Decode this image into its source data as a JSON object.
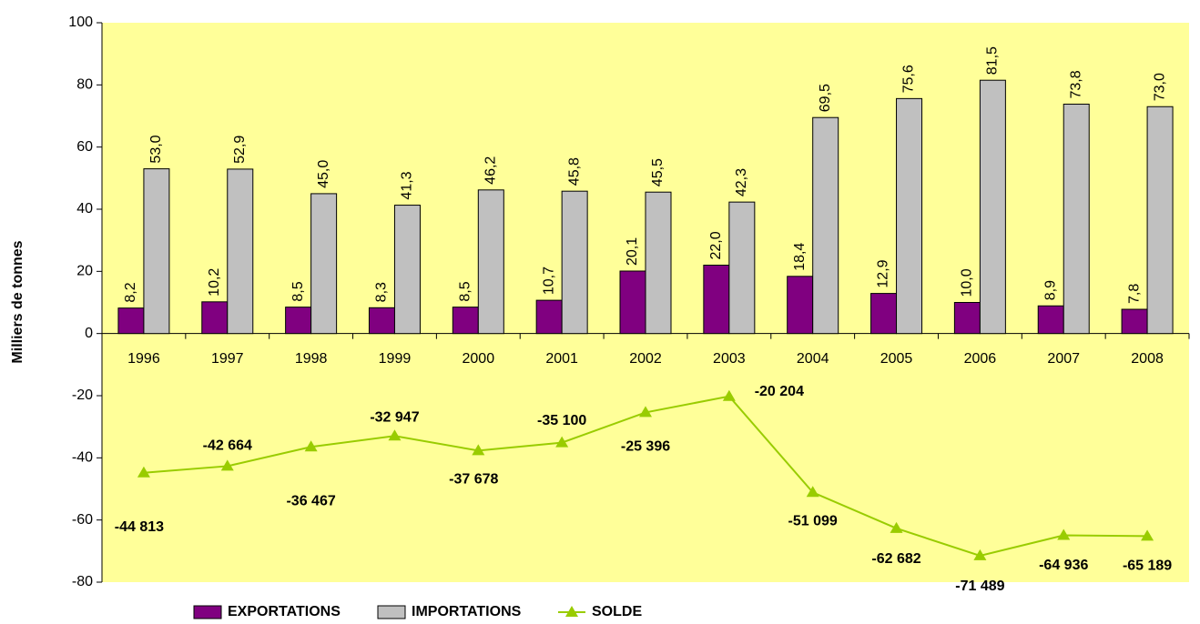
{
  "chart_data": {
    "type": "combo",
    "y_label": "Milliers de tonnes",
    "categories": [
      "1996",
      "1997",
      "1998",
      "1999",
      "2000",
      "2001",
      "2002",
      "2003",
      "2004",
      "2005",
      "2006",
      "2007",
      "2008"
    ],
    "series": [
      {
        "name": "EXPORTATIONS",
        "type": "bar",
        "color": "#800080",
        "values": [
          8.2,
          10.2,
          8.5,
          8.3,
          8.5,
          10.7,
          20.1,
          22.0,
          18.4,
          12.9,
          10.0,
          8.9,
          7.8
        ],
        "value_labels": [
          "8,2",
          "10,2",
          "8,5",
          "8,3",
          "8,5",
          "10,7",
          "20,1",
          "22,0",
          "18,4",
          "12,9",
          "10,0",
          "8,9",
          "7,8"
        ]
      },
      {
        "name": "IMPORTATIONS",
        "type": "bar",
        "color": "#c0c0c0",
        "values": [
          53.0,
          52.9,
          45.0,
          41.3,
          46.2,
          45.8,
          45.5,
          42.3,
          69.5,
          75.6,
          81.5,
          73.8,
          73.0
        ],
        "value_labels": [
          "53,0",
          "52,9",
          "45,0",
          "41,3",
          "46,2",
          "45,8",
          "45,5",
          "42,3",
          "69,5",
          "75,6",
          "81,5",
          "73,8",
          "73,0"
        ]
      },
      {
        "name": "SOLDE",
        "type": "line",
        "color": "#99cc00",
        "values": [
          -44.813,
          -42.664,
          -36.467,
          -32.947,
          -37.678,
          -35.1,
          -25.396,
          -20.204,
          -51.099,
          -62.682,
          -71.489,
          -64.936,
          -65.189
        ],
        "value_labels": [
          "-44 813",
          "-42 664",
          "-36 467",
          "-32 947",
          "-37 678",
          "-35 100",
          "-25 396",
          "-20 204",
          "-51 099",
          "-62 682",
          "-71 489",
          "-64 936",
          "-65 189"
        ]
      }
    ],
    "ylim": [
      -80,
      100
    ],
    "yticks": [
      -80,
      -60,
      -40,
      -20,
      0,
      20,
      40,
      60,
      80,
      100
    ],
    "plot_background": "#ffff99",
    "legend": "bottom"
  }
}
